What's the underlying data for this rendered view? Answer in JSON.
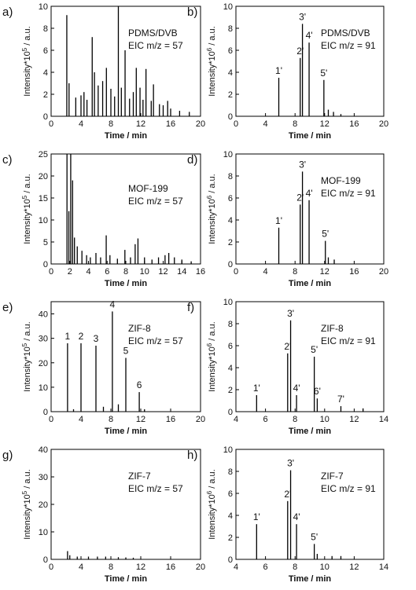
{
  "chart_data": [
    {
      "type": "stem",
      "panel": "a)",
      "labels": [
        "PDMS/DVB",
        "EIC m/z = 57"
      ],
      "y_label": [
        "Intensity*10",
        "5",
        " / a.u."
      ],
      "x_label": "Time / min",
      "xlim": [
        0,
        20
      ],
      "xticks": [
        0,
        4,
        8,
        12,
        16,
        20
      ],
      "ylim": [
        0,
        10
      ],
      "yticks": [
        0,
        2,
        4,
        6,
        8,
        10
      ],
      "x": [
        2.1,
        2.4,
        3.3,
        4.0,
        4.4,
        4.8,
        5.5,
        5.8,
        6.3,
        6.9,
        7.4,
        8.0,
        8.5,
        9.0,
        9.4,
        9.9,
        10.5,
        11.0,
        11.4,
        11.9,
        12.3,
        12.7,
        13.4,
        13.7,
        14.5,
        15.0,
        15.6,
        16.0,
        17.2,
        18.5
      ],
      "values": [
        9.2,
        3,
        1.7,
        1.9,
        2.2,
        1.5,
        7.2,
        4.0,
        2.8,
        3.2,
        4.4,
        2.5,
        1.8,
        10,
        2.6,
        6,
        1.6,
        2.2,
        4.4,
        2.6,
        1.5,
        4.3,
        1.4,
        2.9,
        1.1,
        1.0,
        1.4,
        0.7,
        0.5,
        0.4
      ],
      "annotations": []
    },
    {
      "type": "stem",
      "panel": "b)",
      "labels": [
        "PDMS/DVB",
        "EIC m/z = 91"
      ],
      "y_label": [
        "Intensity*10",
        "6",
        " / a.u."
      ],
      "x_label": "Time / min",
      "xlim": [
        0,
        20
      ],
      "xticks": [
        0,
        4,
        8,
        12,
        16,
        20
      ],
      "ylim": [
        0,
        10
      ],
      "yticks": [
        0,
        2,
        4,
        6,
        8,
        10
      ],
      "x": [
        5.8,
        8.7,
        9.0,
        9.9,
        11.9,
        12.5,
        13.2,
        14.2
      ],
      "values": [
        3.5,
        5.3,
        8.4,
        6.7,
        3.3,
        0.6,
        0.4,
        0.2
      ],
      "annotations": [
        {
          "label": "1'",
          "x": 5.8,
          "y": 3.5
        },
        {
          "label": "2'",
          "x": 8.7,
          "y": 5.3
        },
        {
          "label": "3'",
          "x": 9.0,
          "y": 8.4
        },
        {
          "label": "4'",
          "x": 9.9,
          "y": 6.7
        },
        {
          "label": "5'",
          "x": 11.9,
          "y": 3.3
        }
      ]
    },
    {
      "type": "stem",
      "panel": "c)",
      "labels": [
        "MOF-199",
        "EIC m/z = 57"
      ],
      "y_label": [
        "Intensity*10",
        "5",
        " / a.u."
      ],
      "x_label": "Time / min",
      "xlim": [
        0,
        16
      ],
      "xticks": [
        0,
        2,
        4,
        6,
        8,
        10,
        12,
        14,
        16
      ],
      "ylim": [
        0,
        25
      ],
      "yticks": [
        0,
        5,
        10,
        15,
        20,
        25
      ],
      "x": [
        1.7,
        1.9,
        2.1,
        2.3,
        2.5,
        2.8,
        3.3,
        3.8,
        4.2,
        4.8,
        5.3,
        5.9,
        6.3,
        7.1,
        7.9,
        8.5,
        9.0,
        9.3,
        10.0,
        10.8,
        11.5,
        12.2,
        12.6,
        13.2,
        14.0,
        15.0
      ],
      "values": [
        25,
        12,
        25,
        19,
        6,
        4,
        3,
        2,
        1.5,
        2.5,
        1.5,
        6.5,
        2,
        1.2,
        3.2,
        1.5,
        4.5,
        5.8,
        1.5,
        1,
        1.5,
        2,
        2.5,
        1.5,
        1,
        0.6
      ],
      "annotations": []
    },
    {
      "type": "stem",
      "panel": "d)",
      "labels": [
        "MOF-199",
        "EIC m/z = 91"
      ],
      "y_label": [
        "Intensity*10",
        "6",
        " / a.u."
      ],
      "x_label": "Time / min",
      "xlim": [
        0,
        20
      ],
      "xticks": [
        0,
        4,
        8,
        12,
        16,
        20
      ],
      "ylim": [
        0,
        10
      ],
      "yticks": [
        0,
        2,
        4,
        6,
        8,
        10
      ],
      "x": [
        5.8,
        8.7,
        9.0,
        9.9,
        12.1,
        12.5,
        13.3
      ],
      "values": [
        3.3,
        5.4,
        8.4,
        5.8,
        2.1,
        0.6,
        0.4
      ],
      "annotations": [
        {
          "label": "1'",
          "x": 5.8,
          "y": 3.3
        },
        {
          "label": "2'",
          "x": 8.7,
          "y": 5.4
        },
        {
          "label": "3'",
          "x": 9.0,
          "y": 8.4
        },
        {
          "label": "4'",
          "x": 9.9,
          "y": 5.8
        },
        {
          "label": "5'",
          "x": 12.1,
          "y": 2.1
        }
      ]
    },
    {
      "type": "stem",
      "panel": "e)",
      "labels": [
        "ZIF-8",
        "EIC m/z = 57"
      ],
      "y_label": [
        "Intensity*10",
        "5",
        " / a.u."
      ],
      "x_label": "Time / min",
      "xlim": [
        0,
        20
      ],
      "xticks": [
        0,
        4,
        8,
        12,
        16,
        20
      ],
      "ylim": [
        0,
        45
      ],
      "yticks": [
        0,
        10,
        20,
        30,
        40
      ],
      "x": [
        2.2,
        3.0,
        4.0,
        6.0,
        7.0,
        8.2,
        9.0,
        10.0,
        11.8,
        12.5
      ],
      "values": [
        28,
        1,
        28,
        27,
        2,
        41,
        3,
        22,
        8,
        1
      ],
      "annotations": [
        {
          "label": "1",
          "x": 2.2,
          "y": 28
        },
        {
          "label": "2",
          "x": 4.0,
          "y": 28
        },
        {
          "label": "3",
          "x": 6.0,
          "y": 27
        },
        {
          "label": "4",
          "x": 8.2,
          "y": 41
        },
        {
          "label": "5",
          "x": 10.0,
          "y": 22
        },
        {
          "label": "6",
          "x": 11.8,
          "y": 8
        }
      ]
    },
    {
      "type": "stem",
      "panel": "f)",
      "labels": [
        "ZIF-8",
        "EIC m/z = 91"
      ],
      "y_label": [
        "Intensity*10",
        "6",
        " / a.u."
      ],
      "x_label": "Time / min",
      "xlim": [
        4,
        14
      ],
      "xticks": [
        4,
        6,
        8,
        10,
        12,
        14
      ],
      "ylim": [
        0,
        10
      ],
      "yticks": [
        0,
        2,
        4,
        6,
        8,
        10
      ],
      "x": [
        5.4,
        7.5,
        7.7,
        8.1,
        9.3,
        9.5,
        11.1,
        12.6
      ],
      "values": [
        1.5,
        5.3,
        8.3,
        1.5,
        5,
        1.2,
        0.5,
        0.3
      ],
      "annotations": [
        {
          "label": "1'",
          "x": 5.4,
          "y": 1.5
        },
        {
          "label": "2'",
          "x": 7.5,
          "y": 5.3
        },
        {
          "label": "3'",
          "x": 7.7,
          "y": 8.3
        },
        {
          "label": "4'",
          "x": 8.1,
          "y": 1.5
        },
        {
          "label": "5'",
          "x": 9.3,
          "y": 5
        },
        {
          "label": "6'",
          "x": 9.5,
          "y": 1.2
        },
        {
          "label": "7'",
          "x": 11.1,
          "y": 0.5
        }
      ]
    },
    {
      "type": "stem",
      "panel": "g)",
      "labels": [
        "ZIF-7",
        "EIC m/z = 57"
      ],
      "y_label": [
        "Intensity*10",
        "5",
        " / a.u."
      ],
      "x_label": "Time / min",
      "xlim": [
        0,
        20
      ],
      "xticks": [
        0,
        4,
        8,
        12,
        16,
        20
      ],
      "ylim": [
        0,
        40
      ],
      "yticks": [
        0,
        10,
        20,
        30,
        40
      ],
      "x": [
        2.2,
        2.5,
        3.5,
        5.0,
        6.2,
        7.3,
        9.0,
        10.0,
        11.0
      ],
      "values": [
        3,
        1.5,
        1,
        1,
        1,
        1,
        0.8,
        0.7,
        0.6
      ],
      "annotations": []
    },
    {
      "type": "stem",
      "panel": "h)",
      "labels": [
        "ZIF-7",
        "EIC m/z = 91"
      ],
      "y_label": [
        "Intensity*10",
        "6",
        " / a.u."
      ],
      "x_label": "Time / min",
      "xlim": [
        4,
        14
      ],
      "xticks": [
        4,
        6,
        8,
        10,
        12,
        14
      ],
      "ylim": [
        0,
        10
      ],
      "yticks": [
        0,
        2,
        4,
        6,
        8,
        10
      ],
      "x": [
        5.4,
        7.5,
        7.7,
        8.1,
        9.3,
        9.5,
        10.5,
        11.1
      ],
      "values": [
        3.2,
        5.3,
        8.1,
        3.2,
        1.4,
        0.5,
        0.3,
        0.3
      ],
      "annotations": [
        {
          "label": "1'",
          "x": 5.4,
          "y": 3.2
        },
        {
          "label": "2'",
          "x": 7.5,
          "y": 5.3
        },
        {
          "label": "3'",
          "x": 7.7,
          "y": 8.1
        },
        {
          "label": "4'",
          "x": 8.1,
          "y": 3.2
        },
        {
          "label": "5'",
          "x": 9.3,
          "y": 1.4
        }
      ]
    }
  ]
}
